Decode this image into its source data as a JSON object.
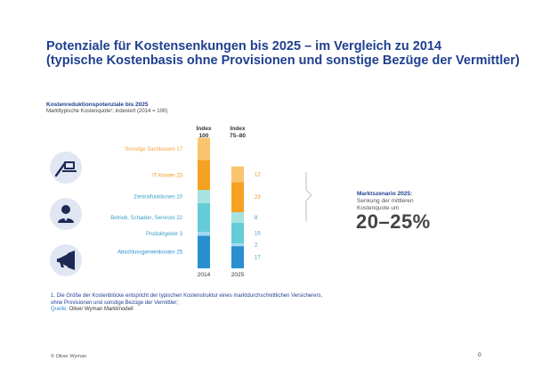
{
  "page": {
    "title_line1": "Potenziale für Kostensenkungen bis 2025 – im Vergleich zu 2014",
    "title_line2": "(typische Kostenbasis ohne Provisionen und sonstige Bezüge der Vermittler)",
    "chart_heading": "Kostenreduktionspotenziale bis 2025",
    "chart_subheading": "Markttypische Kostenquote¹; indexiert (2014 = 100)",
    "footnote_line1": "1. Die Größe der Kostenblöcke entspricht der typischen Kostenstruktur eines marktdurchschnittlichen Versicherers,",
    "footnote_line2": "ohne Provisionen und sonstige Bezüge der Vermittler;",
    "source_label": "Quelle:",
    "source_text": "Oliver Wyman Marktmodell",
    "copyright": "© Oliver Wyman",
    "page_number": "0"
  },
  "scenario": {
    "title": "Marktszenario 2025:",
    "line1": "Senkung der mittleren",
    "line2": "Kostenquote um",
    "value": "20–25%"
  },
  "icons": [
    "pen-computer-icon",
    "person-icon",
    "megaphone-icon"
  ],
  "colors": {
    "title": "#1f3f8f",
    "orange_light": "#f9c46e",
    "orange": "#f5a122",
    "teal_light": "#a6e3e1",
    "teal": "#64ccd6",
    "blue_light": "#9fdaf0",
    "blue": "#2a8fd0",
    "icon_bg": "#e1e6f3"
  },
  "chart_data": {
    "type": "bar",
    "stacked": true,
    "categories": [
      "2014",
      "2025"
    ],
    "column_headers": [
      {
        "line1": "Index",
        "line2": "100"
      },
      {
        "line1": "Index",
        "line2": "75–80"
      }
    ],
    "series": [
      {
        "name": "Abschlussgemeinkosten",
        "values": [
          25,
          17
        ],
        "color": "#2a8fd0"
      },
      {
        "name": "Produktgeber",
        "values": [
          3,
          2
        ],
        "color": "#9fdaf0"
      },
      {
        "name": "Betrieb, Schaden, Services",
        "values": [
          22,
          16
        ],
        "color": "#64ccd6"
      },
      {
        "name": "Zentralfunktionen",
        "values": [
          10,
          8
        ],
        "color": "#a6e3e1"
      },
      {
        "name": "IT Kosten",
        "values": [
          23,
          23
        ],
        "color": "#f5a122"
      },
      {
        "name": "Sonstige Sachkosten",
        "values": [
          17,
          12
        ],
        "color": "#f9c46e"
      }
    ],
    "left_labels": [
      {
        "name": "Sonstige Sachkosten",
        "value": "17"
      },
      {
        "name": "IT Kosten",
        "value": "23"
      },
      {
        "name": "Zentralfunktionen",
        "value": "10"
      },
      {
        "name": "Betrieb, Schaden, Services",
        "value": "22"
      },
      {
        "name": "Produktgeber",
        "value": "3"
      },
      {
        "name": "Abschlussgemeinkosten",
        "value": "25"
      }
    ],
    "right_labels": [
      "12",
      "23",
      "8",
      "16",
      "2",
      "17"
    ],
    "ylim": [
      0,
      100
    ]
  }
}
